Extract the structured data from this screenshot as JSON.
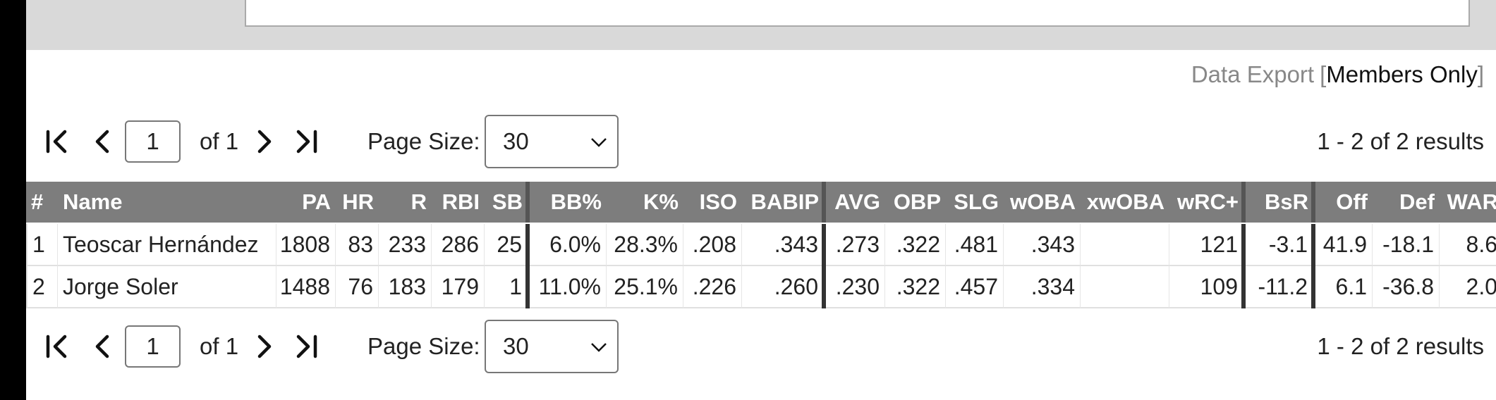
{
  "export": {
    "label": "Data Export",
    "bracket_open": "[",
    "link": "Members Only",
    "bracket_close": "]"
  },
  "pager": {
    "page": "1",
    "of": "of 1",
    "page_size_label": "Page Size:",
    "page_size": "30",
    "results": "1 - 2 of 2 results"
  },
  "table": {
    "columns": [
      "#",
      "Name",
      "PA",
      "HR",
      "R",
      "RBI",
      "SB",
      "BB%",
      "K%",
      "ISO",
      "BABIP",
      "AVG",
      "OBP",
      "SLG",
      "wOBA",
      "xwOBA",
      "wRC+",
      "BsR",
      "Off",
      "Def",
      "WAR"
    ],
    "rows": [
      [
        "1",
        "Teoscar Hernández",
        "1808",
        "83",
        "233",
        "286",
        "25",
        "6.0%",
        "28.3%",
        ".208",
        ".343",
        ".273",
        ".322",
        ".481",
        ".343",
        null,
        "121",
        "-3.1",
        "41.9",
        "-18.1",
        "8.6"
      ],
      [
        "2",
        "Jorge Soler",
        "1488",
        "76",
        "183",
        "179",
        "1",
        "11.0%",
        "25.1%",
        ".226",
        ".260",
        ".230",
        ".322",
        ".457",
        ".334",
        null,
        "109",
        "-11.2",
        "6.1",
        "-36.8",
        "2.0"
      ]
    ]
  }
}
